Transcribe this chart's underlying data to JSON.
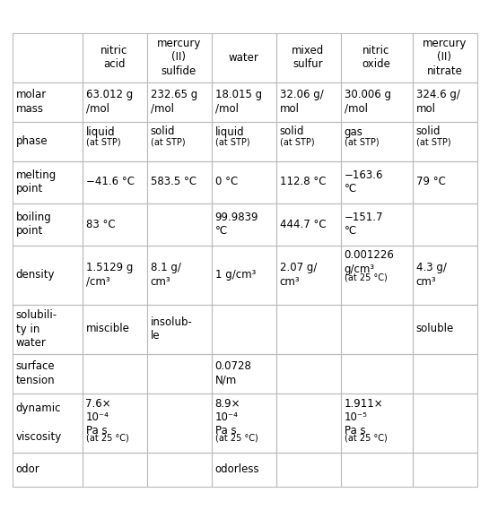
{
  "col_headers": [
    "nitric\nacid",
    "mercury\n(II)\nsulfide",
    "water",
    "mixed\nsulfur",
    "nitric\noxide",
    "mercury\n(II)\nnitrate"
  ],
  "row_headers": [
    "molar\nmass",
    "phase",
    "melting\npoint",
    "boiling\npoint",
    "density",
    "solubili-\nty in\nwater",
    "surface\ntension",
    "dynamic\n\nviscosity",
    "odor"
  ],
  "cells": [
    [
      "63.012 g\n/mol",
      "232.65 g\n/mol",
      "18.015 g\n/mol",
      "32.06 g/\nmol",
      "30.006 g\n/mol",
      "324.6 g/\nmol"
    ],
    [
      "liquid\n(at STP)",
      "solid\n(at STP)",
      "liquid\n(at STP)",
      "solid\n(at STP)",
      "gas\n(at STP)",
      "solid\n(at STP)"
    ],
    [
      "−41.6 °C",
      "583.5 °C",
      "0 °C",
      "112.8 °C",
      "−163.6\n°C",
      "79 °C"
    ],
    [
      "83 °C",
      "",
      "99.9839\n°C",
      "444.7 °C",
      "−151.7\n°C",
      ""
    ],
    [
      "1.5129 g\n/cm³",
      "8.1 g/\ncm³",
      "1 g/cm³",
      "2.07 g/\ncm³",
      "0.001226\ng/cm³\n(at 25 °C)",
      "4.3 g/\ncm³"
    ],
    [
      "miscible",
      "insolub-\nle",
      "",
      "",
      "",
      "soluble"
    ],
    [
      "",
      "",
      "0.0728\nN/m",
      "",
      "",
      ""
    ],
    [
      "7.6×\n10⁻⁴\nPa s\n(at 25 °C)",
      "",
      "8.9×\n10⁻⁴\nPa s\n(at 25 °C)",
      "",
      "1.911×\n10⁻⁵\nPa s\n(at 25 °C)",
      ""
    ],
    [
      "",
      "",
      "odorless",
      "",
      "",
      ""
    ]
  ],
  "background_color": "#ffffff",
  "line_color": "#bbbbbb",
  "text_color": "#000000",
  "col_header_fontsize": 8.5,
  "row_header_fontsize": 8.5,
  "cell_fontsize": 8.5,
  "small_fontsize": 7.0,
  "figsize": [
    5.45,
    5.79
  ],
  "dpi": 100
}
